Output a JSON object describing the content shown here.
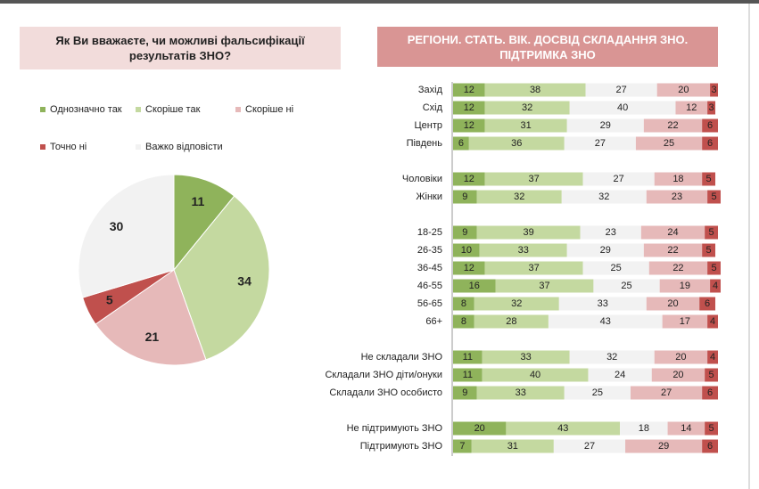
{
  "chart_data": [
    {
      "type": "pie",
      "title": "Як Ви вважаєте, чи можливі фальсифікації результатів ЗНО?",
      "categories": [
        "Однозначно так",
        "Скоріше так",
        "Скоріше ні",
        "Точно ні",
        "Важко відповісти"
      ],
      "values": [
        11,
        34,
        21,
        5,
        30
      ],
      "colors": [
        "#8fb35b",
        "#c4d9a0",
        "#e6b9b9",
        "#c0504d",
        "#f2f2f2"
      ]
    },
    {
      "type": "stacked-bar",
      "title": "РЕГІОНИ. СТАТЬ. ВІК. ДОСВІД СКЛАДАННЯ ЗНО. ПІДТРИМКА ЗНО",
      "categories": [
        "Захід",
        "Схід",
        "Центр",
        "Південь",
        null,
        "Чоловіки",
        "Жінки",
        null,
        "18-25",
        "26-35",
        "36-45",
        "46-55",
        "56-65",
        "66+",
        null,
        "Не складали ЗНО",
        "Складали ЗНО діти/онуки",
        "Складали ЗНО особисто",
        null,
        "Не підтримують ЗНО",
        "Підтримують ЗНО"
      ],
      "xlim": [
        0,
        100
      ],
      "series": [
        {
          "color": "#8fb35b",
          "values": [
            12,
            12,
            12,
            6,
            null,
            12,
            9,
            null,
            9,
            10,
            12,
            16,
            8,
            8,
            null,
            11,
            11,
            9,
            null,
            20,
            7
          ]
        },
        {
          "color": "#c4d9a0",
          "values": [
            38,
            32,
            31,
            36,
            null,
            37,
            32,
            null,
            39,
            33,
            37,
            37,
            32,
            28,
            null,
            33,
            40,
            33,
            null,
            43,
            31
          ]
        },
        {
          "color": "#f2f2f2",
          "values": [
            27,
            40,
            29,
            27,
            null,
            27,
            32,
            null,
            23,
            29,
            25,
            25,
            33,
            43,
            null,
            32,
            24,
            25,
            null,
            18,
            27
          ]
        },
        {
          "color": "#e6b9b9",
          "values": [
            20,
            12,
            22,
            25,
            null,
            18,
            23,
            null,
            24,
            22,
            22,
            19,
            20,
            17,
            null,
            20,
            20,
            27,
            null,
            14,
            29
          ]
        },
        {
          "color": "#c0504d",
          "values": [
            3,
            3,
            6,
            6,
            null,
            5,
            5,
            null,
            5,
            5,
            5,
            4,
            6,
            4,
            null,
            4,
            5,
            6,
            null,
            5,
            6
          ]
        }
      ]
    }
  ]
}
